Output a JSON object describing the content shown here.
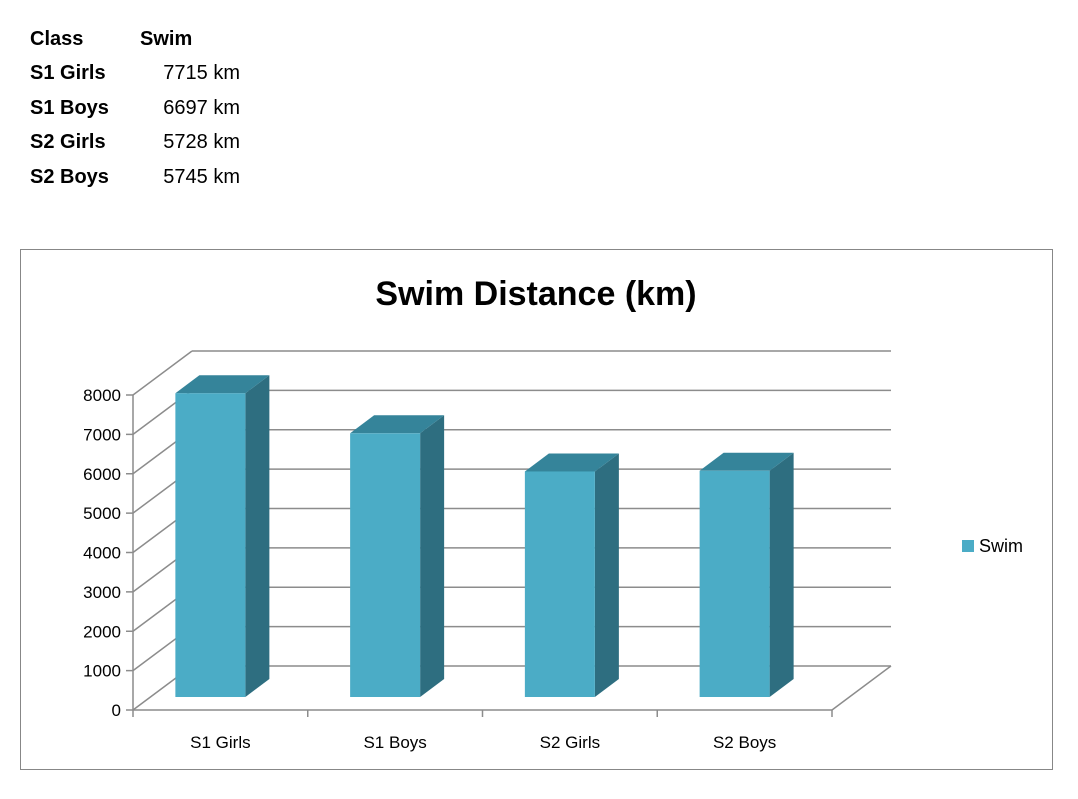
{
  "table": {
    "headers": [
      "Class",
      "Swim"
    ],
    "rows": [
      {
        "label": "S1 Girls",
        "value": "7715 km"
      },
      {
        "label": "S1 Boys",
        "value": "6697 km"
      },
      {
        "label": "S2 Girls",
        "value": "5728 km"
      },
      {
        "label": "S2 Boys",
        "value": "5745 km"
      }
    ]
  },
  "chart_data": {
    "type": "bar",
    "title": "Swim Distance (km)",
    "categories": [
      "S1 Girls",
      "S1 Boys",
      "S2 Girls",
      "S2 Boys"
    ],
    "series": [
      {
        "name": "Swim",
        "values": [
          7715,
          6697,
          5728,
          5745
        ]
      }
    ],
    "ylim": [
      0,
      8000
    ],
    "yticks": [
      0,
      1000,
      2000,
      3000,
      4000,
      5000,
      6000,
      7000,
      8000
    ],
    "grid": true,
    "legend": "right",
    "colors": {
      "front": "#4bacc6",
      "top": "#35849a",
      "side": "#2e6e80"
    }
  }
}
